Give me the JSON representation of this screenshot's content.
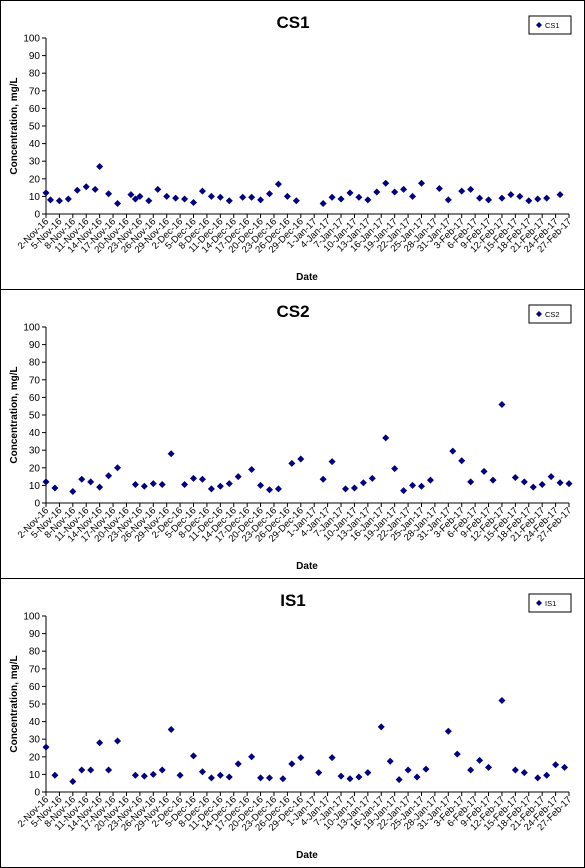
{
  "x_labels": [
    "2-Nov-16",
    "5-Nov-16",
    "8-Nov-16",
    "11-Nov-16",
    "14-Nov-16",
    "17-Nov-16",
    "20-Nov-16",
    "23-Nov-16",
    "26-Nov-16",
    "29-Nov-16",
    "2-Dec-16",
    "5-Dec-16",
    "8-Dec-16",
    "11-Dec-16",
    "14-Dec-16",
    "17-Dec-16",
    "20-Dec-16",
    "23-Dec-16",
    "26-Dec-16",
    "29-Dec-16",
    "1-Jan-17",
    "4-Jan-17",
    "7-Jan-17",
    "10-Jan-17",
    "13-Jan-17",
    "16-Jan-17",
    "19-Jan-17",
    "22-Jan-17",
    "25-Jan-17",
    "28-Jan-17",
    "31-Jan-17",
    "3-Feb-17",
    "6-Feb-17",
    "9-Feb-17",
    "12-Feb-17",
    "15-Feb-17",
    "18-Feb-17",
    "21-Feb-17",
    "24-Feb-17",
    "27-Feb-17"
  ],
  "chart_data": [
    {
      "type": "scatter",
      "title": "CS1",
      "xlabel": "Date",
      "ylabel": "Concentration, mg/L",
      "ylim": [
        0,
        100
      ],
      "yticks": [
        0,
        10,
        20,
        30,
        40,
        50,
        60,
        70,
        80,
        90,
        100
      ],
      "grid": false,
      "legend_position": "top-right",
      "series": [
        {
          "name": "CS1",
          "color": "#000080",
          "marker": "diamond",
          "x": [
            "2-Nov-16",
            "3-Nov-16",
            "5-Nov-16",
            "7-Nov-16",
            "9-Nov-16",
            "11-Nov-16",
            "13-Nov-16",
            "14-Nov-16",
            "16-Nov-16",
            "18-Nov-16",
            "21-Nov-16",
            "22-Nov-16",
            "23-Nov-16",
            "25-Nov-16",
            "27-Nov-16",
            "29-Nov-16",
            "1-Dec-16",
            "3-Dec-16",
            "5-Dec-16",
            "7-Dec-16",
            "9-Dec-16",
            "11-Dec-16",
            "13-Dec-16",
            "16-Dec-16",
            "18-Dec-16",
            "20-Dec-16",
            "22-Dec-16",
            "24-Dec-16",
            "26-Dec-16",
            "28-Dec-16",
            "3-Jan-17",
            "5-Jan-17",
            "7-Jan-17",
            "9-Jan-17",
            "11-Jan-17",
            "13-Jan-17",
            "15-Jan-17",
            "17-Jan-17",
            "19-Jan-17",
            "21-Jan-17",
            "23-Jan-17",
            "25-Jan-17",
            "29-Jan-17",
            "31-Jan-17",
            "3-Feb-17",
            "5-Feb-17",
            "7-Feb-17",
            "9-Feb-17",
            "12-Feb-17",
            "14-Feb-17",
            "16-Feb-17",
            "18-Feb-17",
            "20-Feb-17",
            "22-Feb-17",
            "25-Feb-17"
          ],
          "y": [
            12,
            8,
            7.5,
            8.5,
            13.5,
            15.5,
            14,
            27,
            11.5,
            6,
            11,
            8.5,
            10,
            7.5,
            14,
            10,
            9,
            8.5,
            6.5,
            13,
            10,
            9.5,
            7.5,
            9.5,
            9.5,
            8,
            11.5,
            17,
            10,
            7.5,
            6,
            9.5,
            8.5,
            12,
            9.5,
            8,
            12.5,
            17.5,
            12.5,
            14,
            10,
            17.5,
            14.5,
            8,
            13,
            14,
            9,
            8,
            9,
            11,
            10,
            7.5,
            8.5,
            9,
            11
          ]
        }
      ]
    },
    {
      "type": "scatter",
      "title": "CS2",
      "xlabel": "Date",
      "ylabel": "Concentration, mg/L",
      "ylim": [
        0,
        100
      ],
      "yticks": [
        0,
        10,
        20,
        30,
        40,
        50,
        60,
        70,
        80,
        90,
        100
      ],
      "grid": false,
      "legend_position": "top-right",
      "series": [
        {
          "name": "CS2",
          "color": "#000080",
          "marker": "diamond",
          "x": [
            "2-Nov-16",
            "4-Nov-16",
            "8-Nov-16",
            "10-Nov-16",
            "12-Nov-16",
            "14-Nov-16",
            "16-Nov-16",
            "18-Nov-16",
            "22-Nov-16",
            "24-Nov-16",
            "26-Nov-16",
            "28-Nov-16",
            "30-Nov-16",
            "3-Dec-16",
            "5-Dec-16",
            "7-Dec-16",
            "9-Dec-16",
            "11-Dec-16",
            "13-Dec-16",
            "15-Dec-16",
            "18-Dec-16",
            "20-Dec-16",
            "22-Dec-16",
            "24-Dec-16",
            "27-Dec-16",
            "29-Dec-16",
            "3-Jan-17",
            "5-Jan-17",
            "8-Jan-17",
            "10-Jan-17",
            "12-Jan-17",
            "14-Jan-17",
            "17-Jan-17",
            "19-Jan-17",
            "21-Jan-17",
            "23-Jan-17",
            "25-Jan-17",
            "27-Jan-17",
            "1-Feb-17",
            "3-Feb-17",
            "5-Feb-17",
            "8-Feb-17",
            "10-Feb-17",
            "12-Feb-17",
            "15-Feb-17",
            "17-Feb-17",
            "19-Feb-17",
            "21-Feb-17",
            "23-Feb-17",
            "25-Feb-17",
            "27-Feb-17"
          ],
          "y": [
            12,
            8.5,
            6.5,
            13.5,
            12,
            9,
            15.5,
            20,
            10.5,
            9.5,
            11,
            10.5,
            28,
            10.5,
            14,
            13.5,
            8,
            9.5,
            11,
            15,
            19,
            10,
            7.5,
            8,
            22.5,
            25,
            13.5,
            23.5,
            8,
            8.5,
            11.5,
            14,
            37,
            19.5,
            7,
            10,
            9.5,
            13,
            29.5,
            24,
            12,
            18,
            13,
            56,
            14.5,
            12,
            9,
            10.5,
            15,
            11.5,
            11
          ]
        }
      ]
    },
    {
      "type": "scatter",
      "title": "IS1",
      "xlabel": "Date",
      "ylabel": "Concentration, mg/L",
      "ylim": [
        0,
        100
      ],
      "yticks": [
        0,
        10,
        20,
        30,
        40,
        50,
        60,
        70,
        80,
        90,
        100
      ],
      "grid": false,
      "legend_position": "top-right",
      "series": [
        {
          "name": "IS1",
          "color": "#000080",
          "marker": "diamond",
          "x": [
            "2-Nov-16",
            "4-Nov-16",
            "8-Nov-16",
            "10-Nov-16",
            "12-Nov-16",
            "14-Nov-16",
            "16-Nov-16",
            "18-Nov-16",
            "22-Nov-16",
            "24-Nov-16",
            "26-Nov-16",
            "28-Nov-16",
            "30-Nov-16",
            "2-Dec-16",
            "5-Dec-16",
            "7-Dec-16",
            "9-Dec-16",
            "11-Dec-16",
            "13-Dec-16",
            "15-Dec-16",
            "18-Dec-16",
            "20-Dec-16",
            "22-Dec-16",
            "25-Dec-16",
            "27-Dec-16",
            "29-Dec-16",
            "2-Jan-17",
            "5-Jan-17",
            "7-Jan-17",
            "9-Jan-17",
            "11-Jan-17",
            "13-Jan-17",
            "16-Jan-17",
            "18-Jan-17",
            "20-Jan-17",
            "22-Jan-17",
            "24-Jan-17",
            "26-Jan-17",
            "31-Jan-17",
            "2-Feb-17",
            "5-Feb-17",
            "7-Feb-17",
            "9-Feb-17",
            "12-Feb-17",
            "15-Feb-17",
            "17-Feb-17",
            "20-Feb-17",
            "22-Feb-17",
            "24-Feb-17",
            "26-Feb-17"
          ],
          "y": [
            25.5,
            9.5,
            6,
            12.5,
            12.5,
            28,
            12.5,
            29,
            9.5,
            9,
            10,
            12.5,
            35.5,
            9.5,
            20.5,
            11.5,
            8,
            9.5,
            8.5,
            16,
            20,
            8,
            8,
            7.5,
            16,
            19.5,
            11,
            19.5,
            9,
            7.5,
            8.5,
            11,
            37,
            17.5,
            7,
            12.5,
            8.5,
            13,
            34.5,
            21.5,
            12.5,
            18,
            14,
            52,
            12.5,
            11,
            8,
            9.5,
            15.5,
            14
          ]
        }
      ]
    }
  ]
}
